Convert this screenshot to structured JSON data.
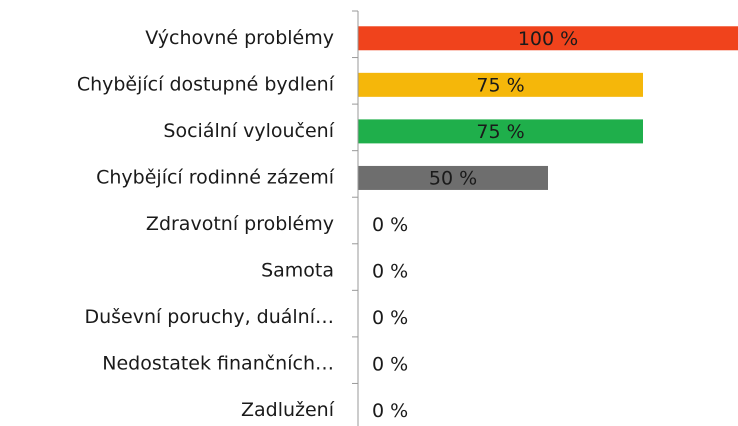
{
  "chart_data": {
    "type": "bar",
    "orientation": "horizontal",
    "categories": [
      "Výchovné problémy",
      "Chybějící dostupné bydlení",
      "Sociální vyloučení",
      "Chybějící rodinné zázemí",
      "Zdravotní problémy",
      "Samota",
      "Duševní poruchy, duální…",
      "Nedostatek finančních…",
      "Zadlužení"
    ],
    "values": [
      100,
      75,
      75,
      50,
      0,
      0,
      0,
      0,
      0
    ],
    "value_labels": [
      "100 %",
      "75 %",
      "75 %",
      "50 %",
      "0 %",
      "0 %",
      "0 %",
      "0 %",
      "0 %"
    ],
    "colors": [
      "#f0431c",
      "#f5b70a",
      "#1faf4b",
      "#6e6e6e",
      "#6e6e6e",
      "#6e6e6e",
      "#6e6e6e",
      "#6e6e6e",
      "#6e6e6e"
    ],
    "xlim": [
      0,
      100
    ]
  }
}
